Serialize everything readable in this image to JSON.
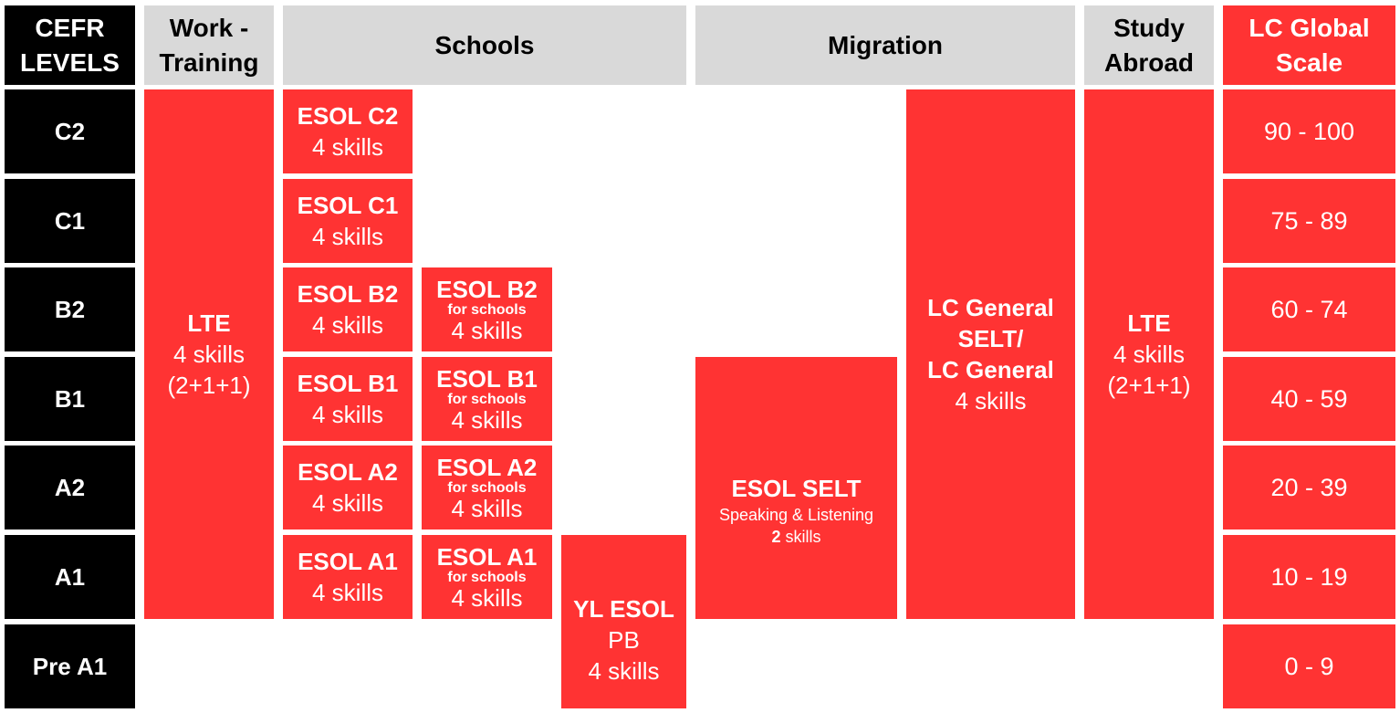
{
  "headers": {
    "cefr": "CEFR\nLEVELS",
    "work": "Work -\nTraining",
    "schools": "Schools",
    "migration": "Migration",
    "study": "Study\nAbroad",
    "global": "LC Global\nScale"
  },
  "levels": [
    "C2",
    "C1",
    "B2",
    "B1",
    "A2",
    "A1",
    "Pre A1"
  ],
  "scale": [
    "90 - 100",
    "75 - 89",
    "60 - 74",
    "40 - 59",
    "20 - 39",
    "10 - 19",
    "0 - 9"
  ],
  "work_lte": {
    "title": "LTE",
    "skills": "4 skills",
    "note": "(2+1+1)"
  },
  "esol": [
    {
      "title": "ESOL C2",
      "skills": "4 skills"
    },
    {
      "title": "ESOL C1",
      "skills": "4 skills"
    },
    {
      "title": "ESOL B2",
      "skills": "4 skills"
    },
    {
      "title": "ESOL B1",
      "skills": "4 skills"
    },
    {
      "title": "ESOL A2",
      "skills": "4 skills"
    },
    {
      "title": "ESOL A1",
      "skills": "4 skills"
    }
  ],
  "esol_schools": [
    {
      "title": "ESOL B2",
      "sub": "for schools",
      "skills": "4 skills"
    },
    {
      "title": "ESOL B1",
      "sub": "for schools",
      "skills": "4 skills"
    },
    {
      "title": "ESOL A2",
      "sub": "for schools",
      "skills": "4 skills"
    },
    {
      "title": "ESOL A1",
      "sub": "for schools",
      "skills": "4 skills"
    }
  ],
  "yl_esol": {
    "title": "YL ESOL",
    "sub": "PB",
    "skills": "4 skills"
  },
  "esol_selt": {
    "title": "ESOL SELT",
    "sub": "Speaking & Listening",
    "skills_num": "2",
    "skills_word": " skills"
  },
  "lc_general": {
    "line1": "LC General",
    "line2": "SELT/",
    "line3": "LC General",
    "skills": "4 skills"
  },
  "study_lte": {
    "title": "LTE",
    "skills": "4 skills",
    "note": "(2+1+1)"
  },
  "colors": {
    "red": "#ff3333",
    "black": "#000000",
    "grey": "#d9d9d9"
  }
}
